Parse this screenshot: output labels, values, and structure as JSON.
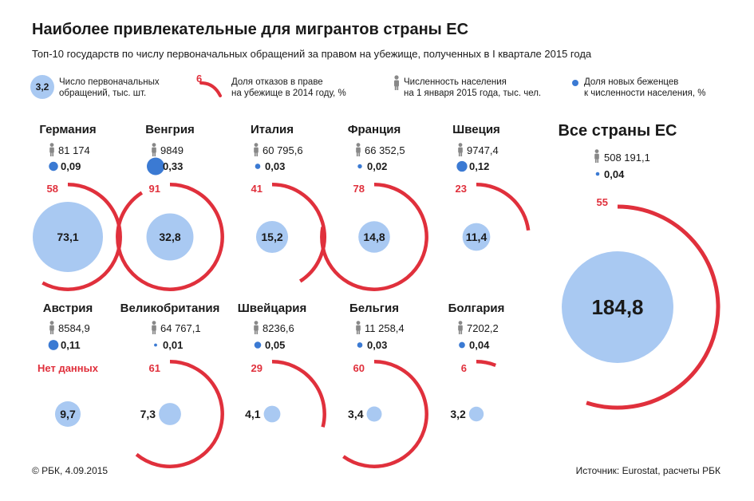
{
  "title": "Наиболее привлекательные для мигрантов страны ЕС",
  "subtitle": "Топ-10 государств по числу первоначальных обращений за правом на убежище, полученных в I квартале 2015 года",
  "legend": {
    "applications_sample": "3,2",
    "applications_label_1": "Число первоначальных",
    "applications_label_2": "обращений, тыс. шт.",
    "rejections_sample": "6",
    "rejections_label_1": "Доля отказов в праве",
    "rejections_label_2": "на убежище в 2014 году, %",
    "population_label_1": "Численность населения",
    "population_label_2": "на 1 января 2015 года, тыс. чел.",
    "refugees_label_1": "Доля новых беженцев",
    "refugees_label_2": "к численности населения, %"
  },
  "colors": {
    "bubble": "#a9c9f2",
    "rejection_arc": "#e0303c",
    "refugee_dot": "#3b7ad3",
    "person_icon": "#888888"
  },
  "icons": {
    "population": "person-icon",
    "refugees": "dot-icon"
  },
  "chart_data": {
    "type": "bubble",
    "countries": [
      {
        "name": "Германия",
        "population": "81 174",
        "refugee_share": "0,09",
        "refugee_share_value": 0.09,
        "rejection": "58",
        "rejection_value": 58,
        "applications": "73,1",
        "applications_value": 73.1
      },
      {
        "name": "Венгрия",
        "population": "9849",
        "refugee_share": "0,33",
        "refugee_share_value": 0.33,
        "rejection": "91",
        "rejection_value": 91,
        "applications": "32,8",
        "applications_value": 32.8
      },
      {
        "name": "Италия",
        "population": "60 795,6",
        "refugee_share": "0,03",
        "refugee_share_value": 0.03,
        "rejection": "41",
        "rejection_value": 41,
        "applications": "15,2",
        "applications_value": 15.2
      },
      {
        "name": "Франция",
        "population": "66 352,5",
        "refugee_share": "0,02",
        "refugee_share_value": 0.02,
        "rejection": "78",
        "rejection_value": 78,
        "applications": "14,8",
        "applications_value": 14.8
      },
      {
        "name": "Швеция",
        "population": "9747,4",
        "refugee_share": "0,12",
        "refugee_share_value": 0.12,
        "rejection": "23",
        "rejection_value": 23,
        "applications": "11,4",
        "applications_value": 11.4
      },
      {
        "name": "Австрия",
        "population": "8584,9",
        "refugee_share": "0,11",
        "refugee_share_value": 0.11,
        "rejection": "Нет данных",
        "rejection_value": null,
        "applications": "9,7",
        "applications_value": 9.7
      },
      {
        "name": "Великобритания",
        "population": "64 767,1",
        "refugee_share": "0,01",
        "refugee_share_value": 0.01,
        "rejection": "61",
        "rejection_value": 61,
        "applications": "7,3",
        "applications_value": 7.3
      },
      {
        "name": "Швейцария",
        "population": "8236,6",
        "refugee_share": "0,05",
        "refugee_share_value": 0.05,
        "rejection": "29",
        "rejection_value": 29,
        "applications": "4,1",
        "applications_value": 4.1
      },
      {
        "name": "Бельгия",
        "population": "11 258,4",
        "refugee_share": "0,03",
        "refugee_share_value": 0.03,
        "rejection": "60",
        "rejection_value": 60,
        "applications": "3,4",
        "applications_value": 3.4
      },
      {
        "name": "Болгария",
        "population": "7202,2",
        "refugee_share": "0,04",
        "refugee_share_value": 0.04,
        "rejection": "6",
        "rejection_value": 6,
        "applications": "3,2",
        "applications_value": 3.2
      }
    ],
    "total": {
      "name": "Все страны ЕС",
      "population": "508 191,1",
      "refugee_share": "0,04",
      "refugee_share_value": 0.04,
      "rejection": "55",
      "rejection_value": 55,
      "applications": "184,8",
      "applications_value": 184.8
    }
  },
  "footer": {
    "left": "© РБК, 4.09.2015",
    "right": "Источник: Eurostat, расчеты РБК"
  }
}
